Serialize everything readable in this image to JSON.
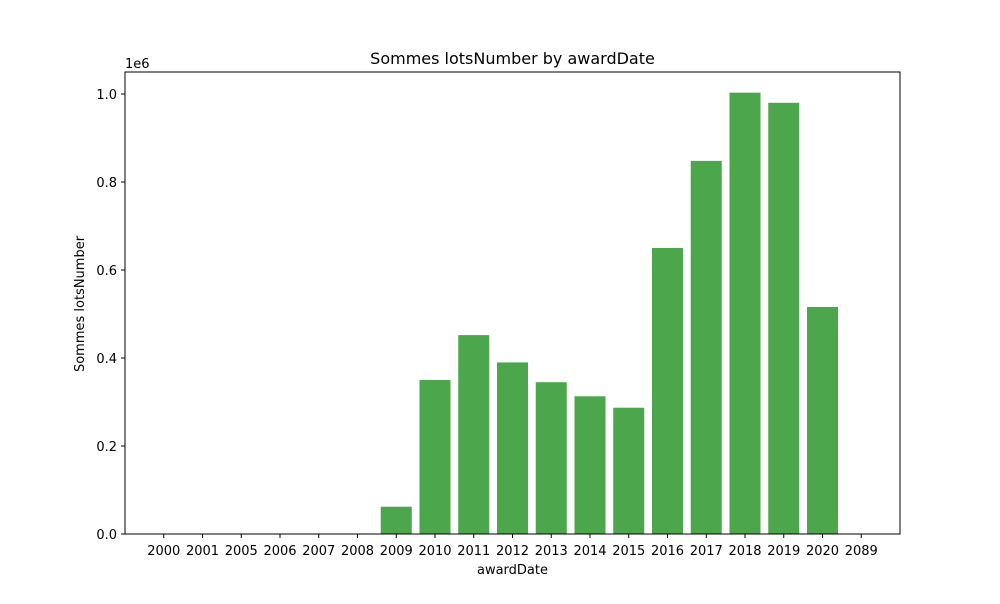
{
  "chart_data": {
    "type": "bar",
    "title": "Sommes lotsNumber by awardDate",
    "xlabel": "awardDate",
    "ylabel": "Sommes lotsNumber",
    "y_offset_label": "1e6",
    "categories": [
      "2000",
      "2001",
      "2005",
      "2006",
      "2007",
      "2008",
      "2009",
      "2010",
      "2011",
      "2012",
      "2013",
      "2014",
      "2015",
      "2016",
      "2017",
      "2018",
      "2019",
      "2020",
      "2089"
    ],
    "values": [
      200,
      100,
      200,
      300,
      400,
      800,
      62000,
      350000,
      452000,
      390000,
      345000,
      313000,
      287000,
      650000,
      848000,
      1003000,
      980000,
      516000,
      50
    ],
    "ylim": [
      0,
      1050000
    ],
    "yticks": [
      0,
      200000,
      400000,
      600000,
      800000,
      1000000
    ],
    "ytick_labels": [
      "0.0",
      "0.2",
      "0.4",
      "0.6",
      "0.8",
      "1.0"
    ],
    "bar_color": "#4ca64c",
    "grid": false,
    "legend": "none"
  }
}
